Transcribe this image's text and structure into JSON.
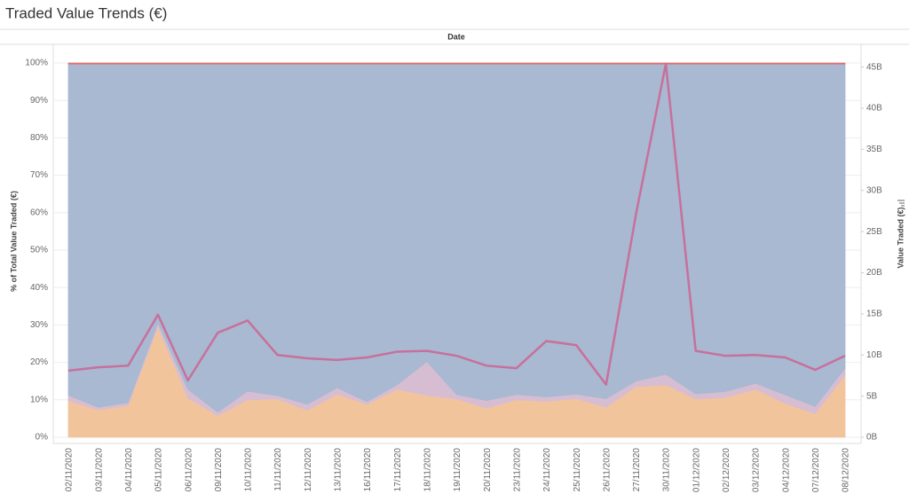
{
  "chart_data": {
    "type": "stacked-area-line",
    "title": "Traded Value Trends (€)",
    "header": "Date",
    "y_label": "% of Total Value Traded (€)",
    "y2_label": "Value Traded (€)",
    "categories": [
      "02/11/2020",
      "03/11/2020",
      "04/11/2020",
      "05/11/2020",
      "06/11/2020",
      "09/11/2020",
      "10/11/2020",
      "11/11/2020",
      "12/11/2020",
      "13/11/2020",
      "16/11/2020",
      "17/11/2020",
      "18/11/2020",
      "19/11/2020",
      "20/11/2020",
      "23/11/2020",
      "24/11/2020",
      "25/11/2020",
      "26/11/2020",
      "27/11/2020",
      "30/11/2020",
      "01/12/2020",
      "02/12/2020",
      "03/12/2020",
      "04/12/2020",
      "07/12/2020",
      "08/12/2020"
    ],
    "series": [
      {
        "color": "#f2c49c",
        "values": [
          9.8,
          7.3,
          8.5,
          29.5,
          10.5,
          5.8,
          10,
          10.2,
          7.2,
          11.5,
          8.8,
          12.8,
          11.2,
          10.2,
          7.8,
          10,
          9.6,
          10.3,
          8,
          13.5,
          14,
          10.2,
          10.6,
          12.8,
          9,
          6.3,
          16.5
        ]
      },
      {
        "color": "#d7bdd2",
        "values": [
          1.4,
          0.7,
          0.7,
          1,
          2.3,
          0.9,
          2.3,
          0.9,
          1.6,
          1.7,
          0.7,
          1.2,
          9,
          1.2,
          2,
          1.4,
          1.2,
          1.2,
          2.3,
          1.5,
          2.8,
          1.4,
          1.6,
          1.6,
          2.3,
          1.9,
          2
        ]
      },
      {
        "color": "#a8b9d1",
        "values": [
          88.5,
          91.7,
          90.5,
          69.2,
          86.9,
          93,
          87.4,
          88.6,
          90.9,
          86.5,
          90.2,
          85.7,
          79.5,
          88.3,
          89.9,
          88.3,
          88.9,
          88.2,
          89.4,
          84.7,
          82.9,
          88.1,
          87.5,
          85.3,
          88.4,
          91.5,
          81.2
        ]
      },
      {
        "color": "#e07272",
        "values": [
          0.3,
          0.3,
          0.3,
          0.3,
          0.3,
          0.3,
          0.3,
          0.3,
          0.3,
          0.3,
          0.3,
          0.3,
          0.3,
          0.3,
          0.3,
          0.3,
          0.3,
          0.3,
          0.3,
          0.3,
          0.3,
          0.3,
          0.3,
          0.3,
          0.3,
          0.3,
          0.3
        ]
      },
      {
        "color": "#c8709c",
        "axis": "y2",
        "values": [
          8.1,
          8.5,
          8.7,
          14.9,
          6.9,
          12.7,
          14.2,
          10,
          9.6,
          9.4,
          9.7,
          10.4,
          10.5,
          9.9,
          8.7,
          8.4,
          11.7,
          11.2,
          6.4,
          27.1,
          45.4,
          10.5,
          9.9,
          10,
          9.7,
          8.2,
          9.9
        ]
      }
    ],
    "ylim": [
      0,
      100
    ],
    "yticks": [
      {
        "value": 0,
        "label": "0%"
      },
      {
        "value": 10,
        "label": "10%"
      },
      {
        "value": 20,
        "label": "20%"
      },
      {
        "value": 30,
        "label": "30%"
      },
      {
        "value": 40,
        "label": "40%"
      },
      {
        "value": 50,
        "label": "50%"
      },
      {
        "value": 60,
        "label": "60%"
      },
      {
        "value": 70,
        "label": "70%"
      },
      {
        "value": 80,
        "label": "80%"
      },
      {
        "value": 90,
        "label": "90%"
      },
      {
        "value": 100,
        "label": "100%"
      }
    ],
    "y2lim": [
      0,
      45.5
    ],
    "y2ticks": [
      {
        "value": 0,
        "label": "0B"
      },
      {
        "value": 5,
        "label": "5B"
      },
      {
        "value": 10,
        "label": "10B"
      },
      {
        "value": 15,
        "label": "15B"
      },
      {
        "value": 20,
        "label": "20B"
      },
      {
        "value": 25,
        "label": "25B"
      },
      {
        "value": 30,
        "label": "30B"
      },
      {
        "value": 35,
        "label": "35B"
      },
      {
        "value": 40,
        "label": "40B"
      },
      {
        "value": 45,
        "label": "45B"
      }
    ],
    "grid": true
  }
}
